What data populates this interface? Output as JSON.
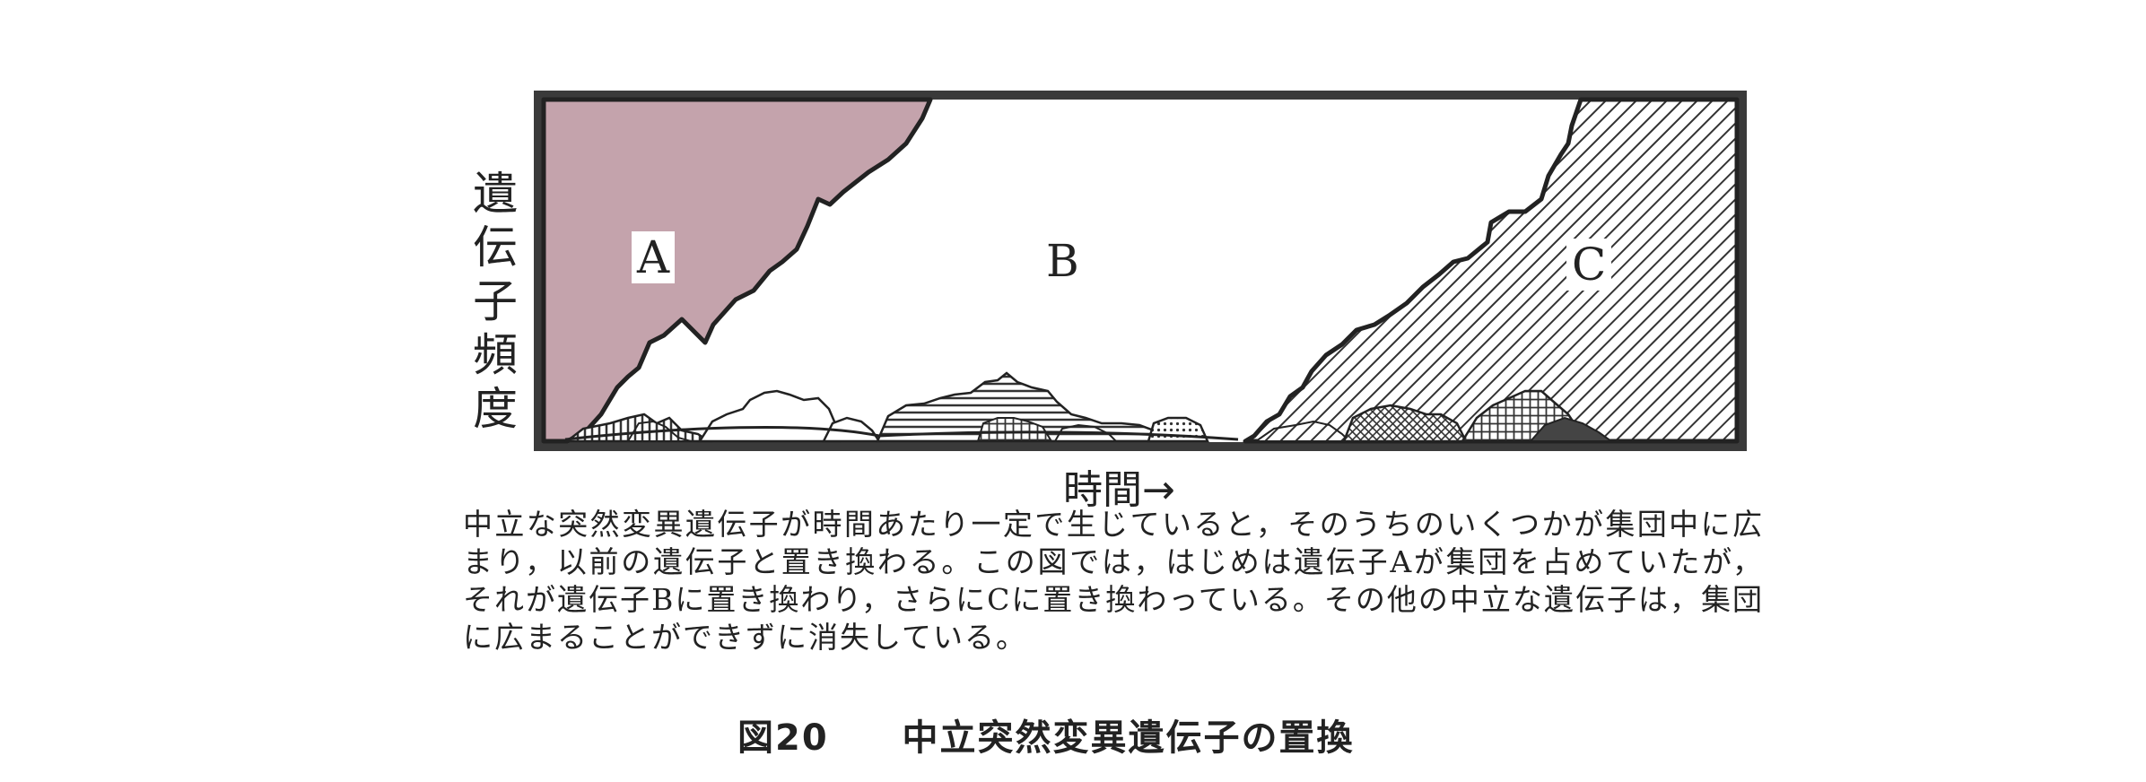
{
  "diagram": {
    "y_axis_label": "遺伝子頻度",
    "x_axis_label": "時間→",
    "region_labels": {
      "a": "A",
      "b": "B",
      "c": "C"
    }
  },
  "caption": {
    "text": "中立な突然変異遺伝子が時間あたり一定で生じていると，そのうちのいくつかが集団中に広まり，以前の遺伝子と置き換わる。この図では，はじめは遺伝子Aが集団を占めていたが，それが遺伝子Bに置き換わり，さらにCに置き換わっている。その他の中立な遺伝子は，集団に広まることができずに消失している。",
    "figure_number": "図20",
    "figure_title": "中立突然変異遺伝子の置換"
  },
  "colors": {
    "allele_a": "#c4a3ac",
    "frame": "#3a3a3a",
    "ink": "#222222"
  }
}
